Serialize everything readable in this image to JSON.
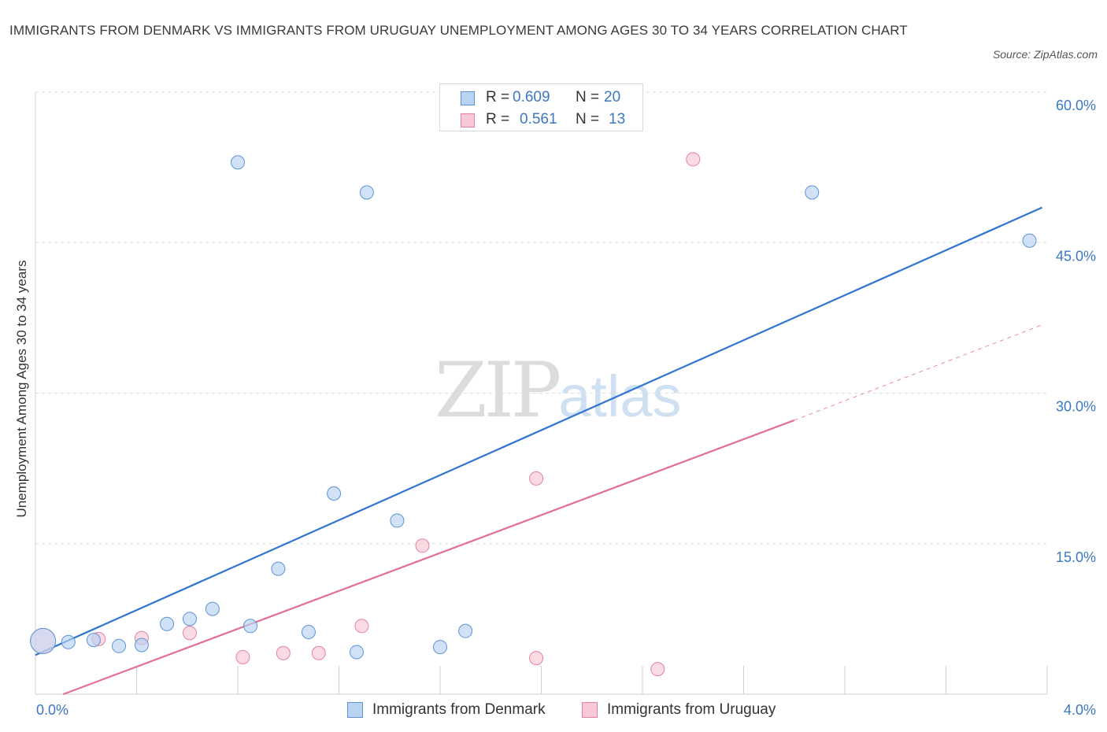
{
  "header": {
    "title": "IMMIGRANTS FROM DENMARK VS IMMIGRANTS FROM URUGUAY UNEMPLOYMENT AMONG AGES 30 TO 34 YEARS CORRELATION CHART",
    "source": "Source: ZipAtlas.com"
  },
  "watermark": {
    "zip": "ZIP",
    "atlas": "atlas"
  },
  "legend_top": {
    "rows": [
      {
        "r_label": "R =",
        "r_value": "0.609",
        "n_label": "N =",
        "n_value": "20"
      },
      {
        "r_label": "R =",
        "r_value": "0.561",
        "n_label": "N =",
        "n_value": "13"
      }
    ]
  },
  "colors": {
    "blue_fill": "#b9d3f3",
    "blue_stroke": "#5b93d6",
    "blue_line": "#2f74cf",
    "pink_fill": "#f8c8d6",
    "pink_stroke": "#e6829f",
    "pink_line": "#e0709a",
    "grid": "#dedede",
    "axis_text": "#3b78c3"
  },
  "chart_data": {
    "type": "scatter",
    "title": "IMMIGRANTS FROM DENMARK VS IMMIGRANTS FROM URUGUAY UNEMPLOYMENT AMONG AGES 30 TO 34 YEARS CORRELATION CHART",
    "xlabel": "",
    "ylabel": "Unemployment Among Ages 30 to 34 years",
    "xlim": [
      0,
      4.0
    ],
    "ylim": [
      0,
      60
    ],
    "x_tick_labels": [
      "0.0%",
      "4.0%"
    ],
    "y_ticks": [
      15,
      30,
      45,
      60
    ],
    "y_tick_labels": [
      "15.0%",
      "30.0%",
      "45.0%",
      "60.0%"
    ],
    "grid": true,
    "legend_position": "top-center",
    "series": [
      {
        "name": "Immigrants from Denmark",
        "r": 0.609,
        "n": 20,
        "points": [
          {
            "x": 0.03,
            "y": 5.3,
            "big": true
          },
          {
            "x": 0.13,
            "y": 5.2
          },
          {
            "x": 0.23,
            "y": 5.4
          },
          {
            "x": 0.33,
            "y": 4.8
          },
          {
            "x": 0.42,
            "y": 4.9
          },
          {
            "x": 0.52,
            "y": 7.0
          },
          {
            "x": 0.61,
            "y": 7.5
          },
          {
            "x": 0.7,
            "y": 8.5
          },
          {
            "x": 0.8,
            "y": 53.0
          },
          {
            "x": 0.85,
            "y": 6.8
          },
          {
            "x": 0.96,
            "y": 12.5
          },
          {
            "x": 1.08,
            "y": 6.2
          },
          {
            "x": 1.18,
            "y": 20.0
          },
          {
            "x": 1.27,
            "y": 4.2
          },
          {
            "x": 1.31,
            "y": 50.0
          },
          {
            "x": 1.43,
            "y": 17.3
          },
          {
            "x": 1.6,
            "y": 4.7
          },
          {
            "x": 1.7,
            "y": 6.3
          },
          {
            "x": 3.07,
            "y": 50.0
          },
          {
            "x": 3.93,
            "y": 45.2
          }
        ],
        "trend": {
          "x0": 0.0,
          "y0": 3.9,
          "x1": 3.98,
          "y1": 48.5
        }
      },
      {
        "name": "Immigrants from Uruguay",
        "r": 0.561,
        "n": 13,
        "points": [
          {
            "x": 0.03,
            "y": 5.3,
            "big": true
          },
          {
            "x": 0.25,
            "y": 5.5
          },
          {
            "x": 0.42,
            "y": 5.6
          },
          {
            "x": 0.61,
            "y": 6.1
          },
          {
            "x": 0.82,
            "y": 3.7
          },
          {
            "x": 0.98,
            "y": 4.1
          },
          {
            "x": 1.12,
            "y": 4.1
          },
          {
            "x": 1.29,
            "y": 6.8
          },
          {
            "x": 1.53,
            "y": 14.8
          },
          {
            "x": 1.98,
            "y": 3.6
          },
          {
            "x": 1.98,
            "y": 21.5
          },
          {
            "x": 2.46,
            "y": 2.5
          },
          {
            "x": 2.6,
            "y": 53.3
          }
        ],
        "trend": {
          "x0": 0.11,
          "y0": 0.0,
          "x1": 3.0,
          "y1": 27.3,
          "dash_x1": 3.98,
          "dash_y1": 36.8
        }
      }
    ]
  }
}
